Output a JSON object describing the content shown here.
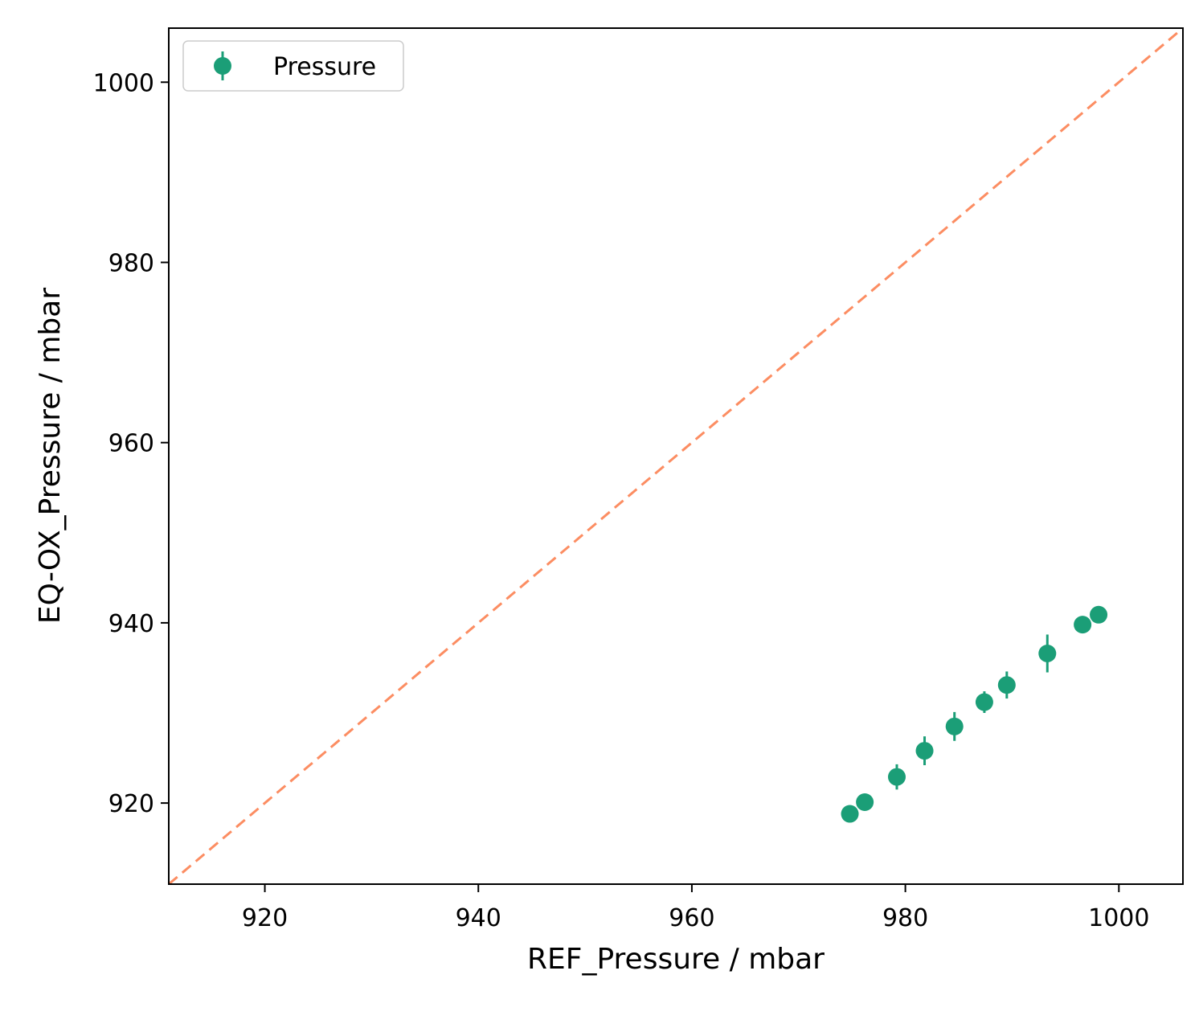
{
  "chart_data": {
    "type": "scatter",
    "title": "",
    "xlabel": "REF_Pressure / mbar",
    "ylabel": "EQ-OX_Pressure / mbar",
    "xlim": [
      911,
      1006
    ],
    "ylim": [
      911,
      1006
    ],
    "x_ticks": [
      920,
      940,
      960,
      980,
      1000
    ],
    "y_ticks": [
      920,
      940,
      960,
      980,
      1000
    ],
    "x_tick_labels": [
      "920",
      "940",
      "960",
      "980",
      "1000"
    ],
    "y_tick_labels": [
      "920",
      "940",
      "960",
      "980",
      "1000"
    ],
    "grid": false,
    "legend": {
      "position": "top-left",
      "entries": [
        "Pressure"
      ]
    },
    "series": [
      {
        "name": "Pressure",
        "color": "#1b9e77",
        "marker": "circle",
        "x": [
          974.8,
          976.2,
          979.2,
          981.8,
          984.6,
          987.4,
          989.5,
          993.3,
          996.6,
          998.1
        ],
        "y": [
          918.8,
          920.1,
          922.9,
          925.8,
          928.5,
          931.2,
          933.1,
          936.6,
          939.8,
          940.9
        ],
        "yerr": [
          0.7,
          0.9,
          1.4,
          1.6,
          1.6,
          1.2,
          1.5,
          2.1,
          0.8,
          0.9
        ]
      }
    ],
    "reference_line": {
      "label": "y = x",
      "color": "#fc8d62",
      "style": "dashed",
      "from": [
        911,
        911
      ],
      "to": [
        1006,
        1006
      ]
    }
  }
}
